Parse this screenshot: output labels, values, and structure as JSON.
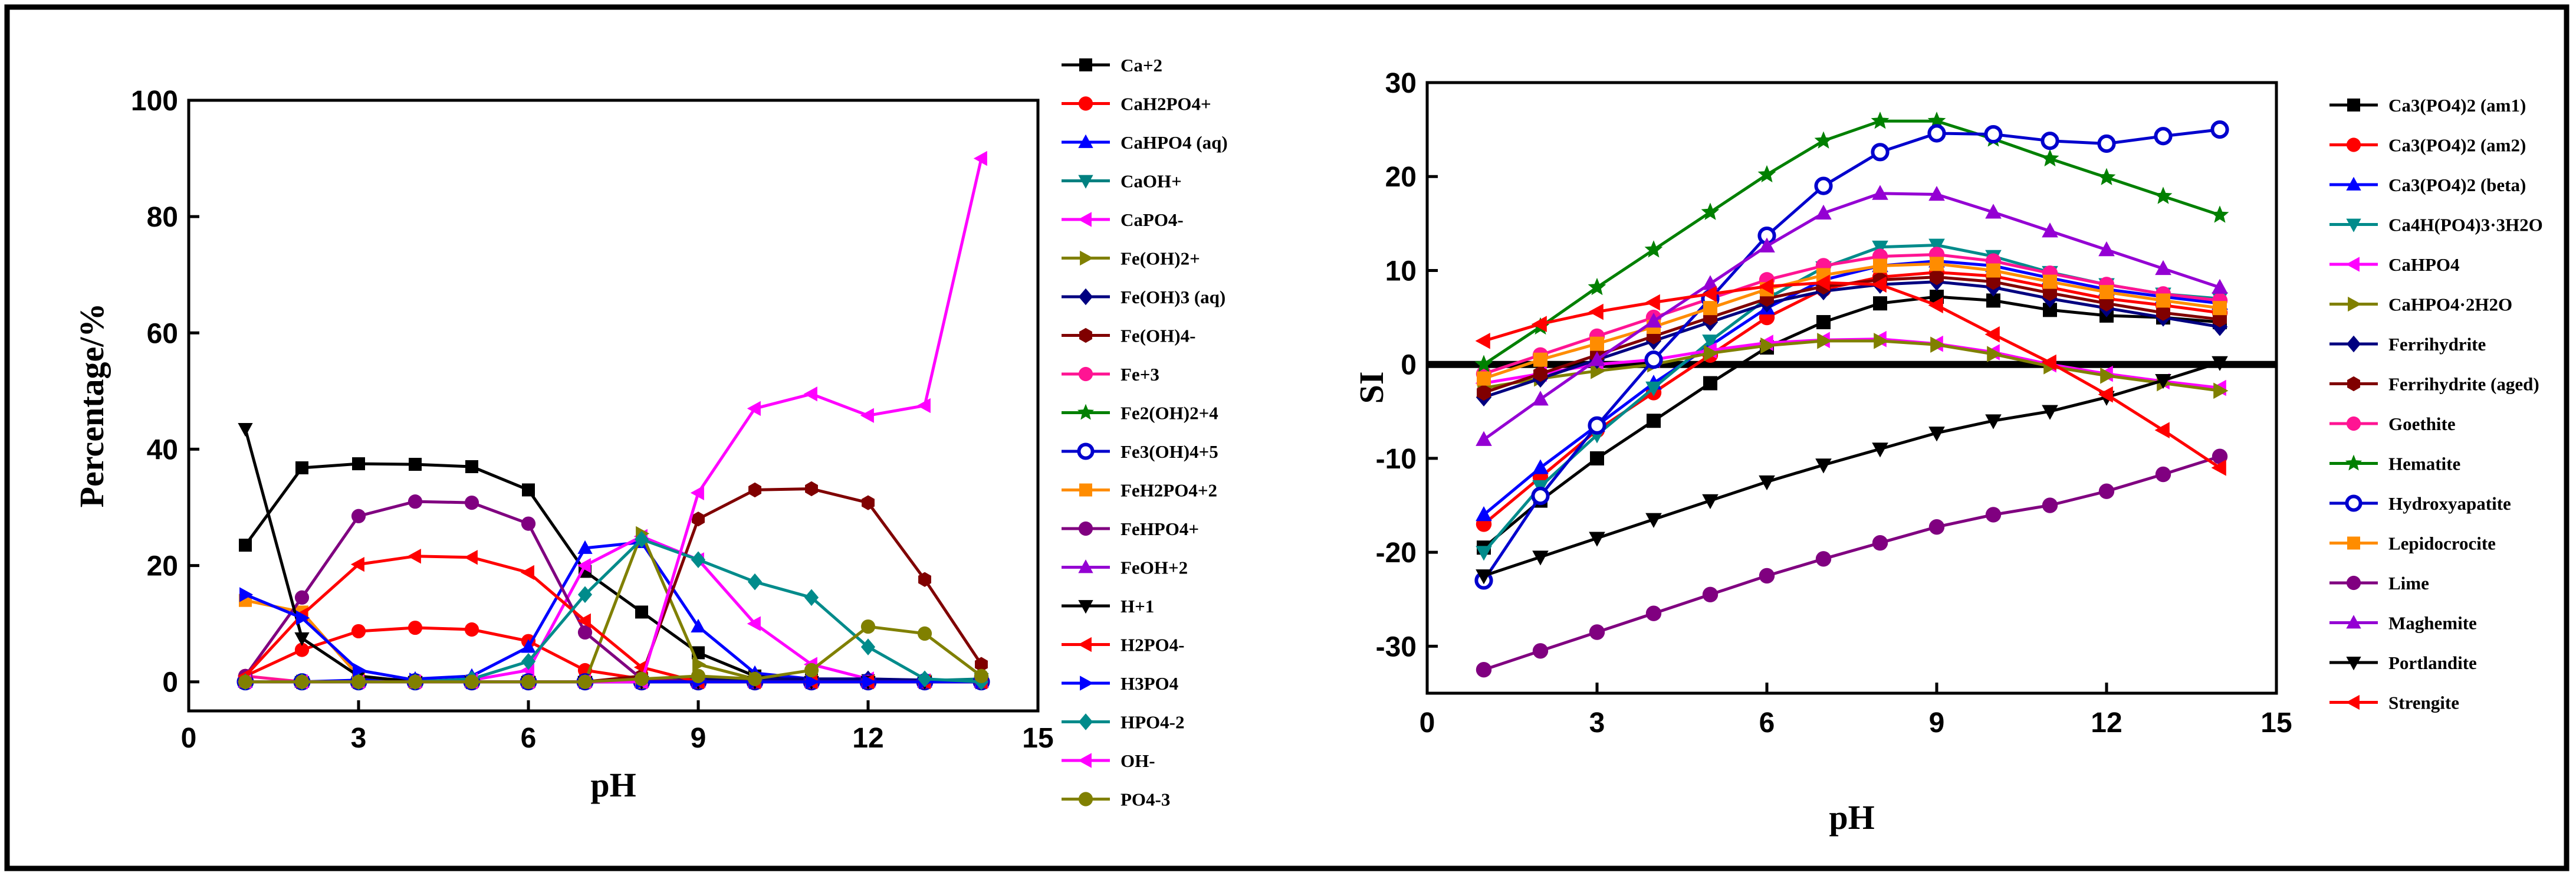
{
  "chart_data": [
    {
      "type": "line",
      "xlabel": "pH",
      "ylabel": "Percentage/%",
      "xlim": [
        0,
        15
      ],
      "ylim": [
        -5,
        100
      ],
      "xticks": [
        "0",
        "3",
        "6",
        "9",
        "12",
        "15"
      ],
      "yticks": [
        "0",
        "20",
        "40",
        "60",
        "80",
        "100"
      ],
      "x": [
        1,
        2,
        3,
        4,
        5,
        6,
        7,
        8,
        9,
        10,
        11,
        12,
        13,
        14
      ],
      "legend_position": "right",
      "series": [
        {
          "name": "Ca+2",
          "color": "#000000",
          "marker": "square",
          "values": [
            23.5,
            36.8,
            37.5,
            37.4,
            37,
            33,
            19,
            12,
            5,
            1,
            0.3,
            0.2,
            0.1,
            0
          ]
        },
        {
          "name": "CaH2PO4+",
          "color": "#ff0000",
          "marker": "circle",
          "values": [
            1,
            5.5,
            8.7,
            9.3,
            9,
            7,
            2,
            0.5,
            0,
            0,
            0,
            0,
            0,
            0
          ]
        },
        {
          "name": "CaHPO4 (aq)",
          "color": "#0000ff",
          "marker": "triangle-up",
          "values": [
            0,
            0,
            0.3,
            0.5,
            1,
            6,
            23,
            24,
            9.5,
            1.5,
            0.5,
            0.2,
            0,
            0
          ]
        },
        {
          "name": "CaOH+",
          "color": "#008080",
          "marker": "triangle-down",
          "values": [
            0,
            0,
            0,
            0,
            0,
            0,
            0,
            0,
            0,
            0,
            0,
            0,
            0.2,
            0.5
          ]
        },
        {
          "name": "CaPO4-",
          "color": "#ff00ff",
          "marker": "triangle-left",
          "values": [
            0,
            0,
            0,
            0,
            0.3,
            2,
            20,
            25,
            21,
            10,
            3,
            0.5,
            0.2,
            0
          ]
        },
        {
          "name": "Fe(OH)2+",
          "color": "#808000",
          "marker": "triangle-right",
          "values": [
            0,
            0,
            0,
            0,
            0,
            0,
            0,
            25.5,
            3,
            0.5,
            0,
            0,
            0,
            0
          ]
        },
        {
          "name": "Fe(OH)3 (aq)",
          "color": "#000080",
          "marker": "diamond",
          "values": [
            0,
            0,
            0,
            0,
            0,
            0,
            0,
            0,
            0.5,
            0.5,
            0.5,
            0.5,
            0.3,
            0
          ]
        },
        {
          "name": "Fe(OH)4-",
          "color": "#800000",
          "marker": "hexagon",
          "values": [
            0,
            0,
            0,
            0,
            0,
            0,
            0,
            1,
            28,
            33,
            33.2,
            30.8,
            17.6,
            3
          ]
        },
        {
          "name": "Fe+3",
          "color": "#ff1493",
          "marker": "circle",
          "values": [
            1,
            0,
            0,
            0,
            0,
            0,
            0,
            0,
            0,
            0,
            0,
            0,
            0,
            0
          ]
        },
        {
          "name": "Fe2(OH)2+4",
          "color": "#008000",
          "marker": "star",
          "values": [
            0,
            0,
            0,
            0,
            0,
            0,
            0,
            0,
            0,
            0,
            0,
            0,
            0,
            0
          ]
        },
        {
          "name": "Fe3(OH)4+5",
          "color": "#0000cd",
          "marker": "circle-open",
          "values": [
            0,
            0,
            0,
            0,
            0,
            0,
            0,
            0,
            0,
            0,
            0,
            0,
            0,
            0
          ]
        },
        {
          "name": "FeH2PO4+2",
          "color": "#ff8c00",
          "marker": "square",
          "values": [
            14,
            12,
            1,
            0,
            0,
            0,
            0,
            0,
            0,
            0,
            0,
            0,
            0,
            0
          ]
        },
        {
          "name": "FeHPO4+",
          "color": "#800080",
          "marker": "circle",
          "values": [
            1,
            14.5,
            28.5,
            31,
            30.8,
            27.2,
            8.5,
            0.5,
            0,
            0,
            0,
            0,
            0,
            0
          ]
        },
        {
          "name": "FeOH+2",
          "color": "#9400d3",
          "marker": "triangle-up",
          "values": [
            0,
            0,
            0,
            0,
            0,
            0,
            0,
            0,
            0,
            0,
            0,
            0,
            0,
            0
          ]
        },
        {
          "name": "H+1",
          "color": "#000000",
          "marker": "triangle-down",
          "values": [
            43.5,
            7.5,
            1,
            0,
            0,
            0,
            0,
            0,
            0,
            0,
            0,
            0,
            0,
            0
          ]
        },
        {
          "name": "H2PO4-",
          "color": "#ff0000",
          "marker": "triangle-left",
          "values": [
            1,
            11.5,
            20.2,
            21.6,
            21.4,
            18.8,
            10.5,
            2.5,
            0,
            0,
            0,
            0,
            0,
            0
          ]
        },
        {
          "name": "H3PO4",
          "color": "#0000ff",
          "marker": "triangle-right",
          "values": [
            15,
            11,
            2,
            0.3,
            0,
            0,
            0,
            0,
            0,
            0,
            0,
            0,
            0,
            0
          ]
        },
        {
          "name": "HPO4-2",
          "color": "#008b8b",
          "marker": "diamond",
          "values": [
            0,
            0,
            0,
            0,
            0.5,
            3.5,
            15,
            24.5,
            21,
            17.2,
            14.5,
            6,
            0.5,
            0
          ]
        },
        {
          "name": "OH-",
          "color": "#ff00ff",
          "marker": "triangle-left",
          "values": [
            0,
            0,
            0,
            0,
            0,
            0,
            0,
            0,
            32.5,
            47,
            49.5,
            45.8,
            47.5,
            90
          ]
        },
        {
          "name": "PO4-3",
          "color": "#808000",
          "marker": "circle",
          "values": [
            0,
            0,
            0,
            0,
            0,
            0,
            0,
            0.5,
            1,
            0.5,
            2,
            9.5,
            8.3,
            1
          ]
        }
      ]
    },
    {
      "type": "line",
      "xlabel": "pH",
      "ylabel": "SI",
      "xlim": [
        0,
        15
      ],
      "ylim": [
        -35,
        30
      ],
      "xticks": [
        "0",
        "3",
        "6",
        "9",
        "12",
        "15"
      ],
      "yticks": [
        "-30",
        "-20",
        "-10",
        "0",
        "10",
        "20",
        "30"
      ],
      "x": [
        1,
        2,
        3,
        4,
        5,
        6,
        7,
        8,
        9,
        10,
        11,
        12,
        13,
        14
      ],
      "zero_line": true,
      "legend_position": "right",
      "series": [
        {
          "name": "Ca3(PO4)2 (am1)",
          "color": "#000000",
          "marker": "square",
          "values": [
            -19.5,
            -14.5,
            -10,
            -6,
            -2,
            1.8,
            4.5,
            6.5,
            7.2,
            6.8,
            5.8,
            5.2,
            5,
            4.5
          ]
        },
        {
          "name": "Ca3(PO4)2 (am2)",
          "color": "#ff0000",
          "marker": "circle",
          "values": [
            -17,
            -12,
            -7,
            -3,
            1,
            5,
            8,
            9.3,
            9.8,
            9.4,
            8.2,
            7,
            6.3,
            5.5
          ]
        },
        {
          "name": "Ca3(PO4)2 (beta)",
          "color": "#0000ff",
          "marker": "triangle-up",
          "values": [
            -16,
            -11,
            -6.5,
            -2,
            2,
            6,
            9,
            10.5,
            11,
            10.5,
            9.2,
            8,
            7.2,
            6.5
          ]
        },
        {
          "name": "Ca4H(PO4)3·3H2O",
          "color": "#008b8b",
          "marker": "triangle-down",
          "values": [
            -20,
            -13,
            -7.5,
            -2.5,
            2.5,
            7,
            10.3,
            12.5,
            12.7,
            11.5,
            9.8,
            8.5,
            7.5,
            7
          ]
        },
        {
          "name": "CaHPO4",
          "color": "#ff00ff",
          "marker": "triangle-left",
          "values": [
            -2,
            -1,
            0,
            0.5,
            1.5,
            2.3,
            2.6,
            2.7,
            2.2,
            1.3,
            0,
            -1,
            -1.8,
            -2.5
          ]
        },
        {
          "name": "CaHPO4·2H2O",
          "color": "#808000",
          "marker": "triangle-right",
          "values": [
            -2.5,
            -1.5,
            -0.7,
            0,
            1.2,
            2,
            2.5,
            2.5,
            2.1,
            1.1,
            -0.2,
            -1.2,
            -2,
            -2.8
          ]
        },
        {
          "name": "Ferrihydrite",
          "color": "#000080",
          "marker": "diamond",
          "values": [
            -3.5,
            -1.5,
            0.5,
            2.5,
            4.5,
            6.5,
            7.8,
            8.5,
            8.8,
            8.2,
            7,
            6,
            5,
            4
          ]
        },
        {
          "name": "Ferrihydrite (aged)",
          "color": "#800000",
          "marker": "hexagon",
          "values": [
            -3,
            -1,
            1,
            3,
            5,
            7,
            8.3,
            9,
            9.3,
            8.8,
            7.6,
            6.5,
            5.5,
            4.8
          ]
        },
        {
          "name": "Goethite",
          "color": "#ff1493",
          "marker": "circle",
          "values": [
            -1,
            1,
            3,
            5,
            7,
            9,
            10.5,
            11.5,
            11.7,
            11,
            9.7,
            8.5,
            7.5,
            6.8
          ]
        },
        {
          "name": "Hematite",
          "color": "#008000",
          "marker": "star",
          "values": [
            0,
            4,
            8.2,
            12.2,
            16.2,
            20.2,
            23.8,
            25.9,
            25.9,
            24,
            21.9,
            19.9,
            17.9,
            15.9
          ]
        },
        {
          "name": "Hydroxyapatite",
          "color": "#0000cd",
          "marker": "circle-open",
          "values": [
            -23,
            -14,
            -6.5,
            0.5,
            7,
            13.7,
            19,
            22.6,
            24.6,
            24.5,
            23.8,
            23.5,
            24.3,
            25
          ]
        },
        {
          "name": "Lepidocrocite",
          "color": "#ff8c00",
          "marker": "square",
          "values": [
            -1.5,
            0.5,
            2.2,
            4,
            6,
            8,
            9.5,
            10.5,
            10.7,
            10,
            8.8,
            7.7,
            6.8,
            6
          ]
        },
        {
          "name": "Lime",
          "color": "#800080",
          "marker": "circle",
          "values": [
            -32.5,
            -30.5,
            -28.5,
            -26.5,
            -24.5,
            -22.5,
            -20.7,
            -19,
            -17.3,
            -16,
            -15,
            -13.5,
            -11.7,
            -9.8
          ]
        },
        {
          "name": "Maghemite",
          "color": "#9400d3",
          "marker": "triangle-up",
          "values": [
            -8,
            -3.7,
            0.5,
            4.6,
            8.6,
            12.6,
            16.1,
            18.2,
            18.1,
            16.2,
            14.2,
            12.2,
            10.2,
            8.2
          ]
        },
        {
          "name": "Portlandite",
          "color": "#000000",
          "marker": "triangle-down",
          "values": [
            -22.5,
            -20.5,
            -18.5,
            -16.5,
            -14.5,
            -12.5,
            -10.7,
            -9,
            -7.3,
            -6,
            -5,
            -3.5,
            -1.7,
            0.2
          ]
        },
        {
          "name": "Strengite",
          "color": "#ff0000",
          "marker": "triangle-left",
          "values": [
            2.5,
            4.3,
            5.6,
            6.6,
            7.5,
            8.3,
            8.7,
            8.5,
            6.3,
            3.2,
            0.2,
            -3.2,
            -7,
            -11
          ]
        }
      ]
    }
  ]
}
